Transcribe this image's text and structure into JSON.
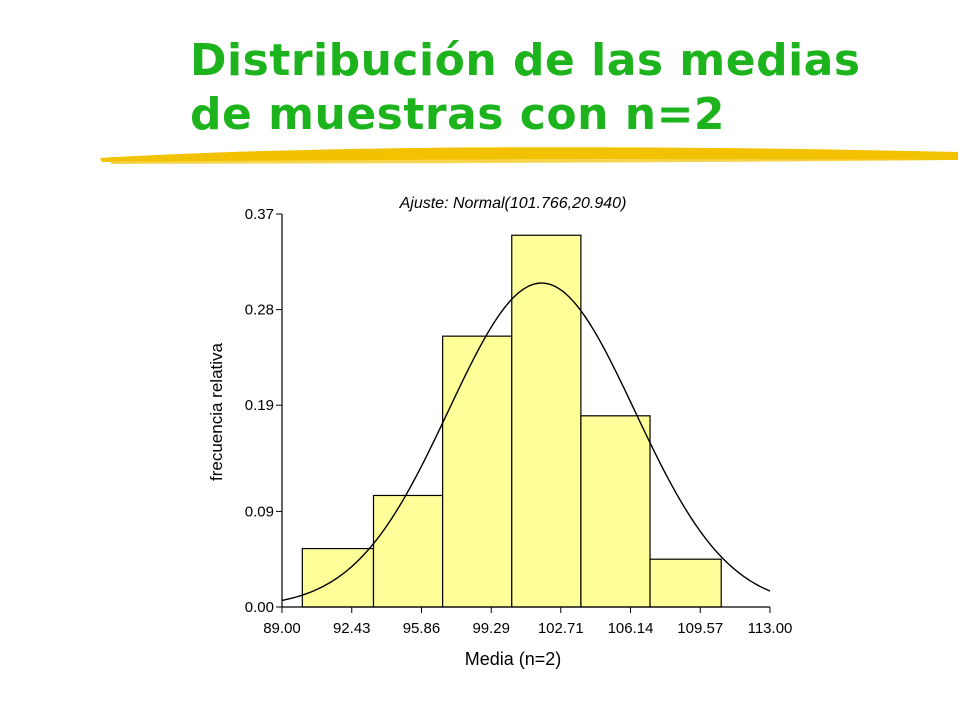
{
  "slide": {
    "title_line1": "Distribución de las medias",
    "title_line2": "de muestras con n=2",
    "title_color": "#1db31d",
    "underline_color": "#f2c200"
  },
  "chart_data": {
    "type": "bar",
    "title": "Ajuste: Normal(101.766,20.940)",
    "xlabel": "Media (n=2)",
    "ylabel": "frecuencia relativa",
    "bar_color": "#ffff99",
    "bar_edge_color": "#000000",
    "xlim": [
      89.0,
      113.0
    ],
    "ylim": [
      0.0,
      0.37
    ],
    "x_ticks": [
      "89.00",
      "92.43",
      "95.86",
      "99.29",
      "102.71",
      "106.14",
      "109.57",
      "113.00"
    ],
    "y_ticks": [
      "0.00",
      "0.09",
      "0.19",
      "0.28",
      "0.37"
    ],
    "bins": [
      {
        "from": 90.0,
        "to": 93.5,
        "value": 0.055
      },
      {
        "from": 93.5,
        "to": 96.9,
        "value": 0.105
      },
      {
        "from": 96.9,
        "to": 100.3,
        "value": 0.255
      },
      {
        "from": 100.3,
        "to": 103.7,
        "value": 0.35
      },
      {
        "from": 103.7,
        "to": 107.1,
        "value": 0.18
      },
      {
        "from": 107.1,
        "to": 110.6,
        "value": 0.045
      }
    ],
    "fit_curve": {
      "distribution": "normal",
      "mean": 101.766,
      "variance": 20.94,
      "peak_value": 0.305,
      "x_range": [
        89.0,
        113.0
      ]
    }
  }
}
